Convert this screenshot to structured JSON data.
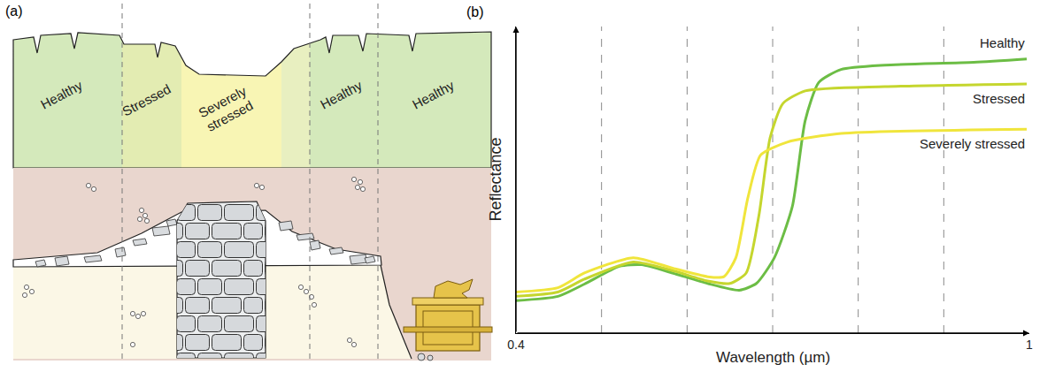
{
  "diagram": {
    "panel_label": "(a)",
    "zones": [
      "Healthy",
      "Stressed",
      "Severely stressed",
      "Healthy",
      "Healthy"
    ]
  },
  "chart_data": {
    "type": "line",
    "panel_label": "(b)",
    "x_label": "Wavelength (µm)",
    "y_label": "Reflectance",
    "xlim": [
      0.4,
      1
    ],
    "xticks": [
      0.4,
      {
        "value": 0.5,
        "label": null
      },
      {
        "value": 0.6,
        "label": null
      },
      {
        "value": 0.7,
        "label": null
      },
      {
        "value": 0.8,
        "label": null
      },
      {
        "value": 0.9,
        "label": null
      },
      1
    ],
    "ylim": [
      0,
      1
    ],
    "yticks": [],
    "grid": true,
    "tick_labels": "x",
    "series": [
      {
        "name": "Healthy",
        "color": "#6cbd45",
        "x": [
          0.4,
          0.449,
          0.48,
          0.521,
          0.547,
          0.583,
          0.624,
          0.661,
          0.681,
          0.702,
          0.723,
          0.738,
          0.754,
          0.78,
          0.831,
          0.935,
          0.997
        ],
        "values": [
          0.106,
          0.12,
          0.16,
          0.218,
          0.223,
          0.196,
          0.162,
          0.14,
          0.162,
          0.246,
          0.413,
          0.693,
          0.818,
          0.86,
          0.874,
          0.883,
          0.894
        ]
      },
      {
        "name": "Stressed",
        "color": "#c5d62e",
        "x": [
          0.4,
          0.449,
          0.48,
          0.537,
          0.583,
          0.624,
          0.65,
          0.669,
          0.684,
          0.697,
          0.712,
          0.738,
          0.831,
          0.997
        ],
        "values": [
          0.12,
          0.134,
          0.176,
          0.232,
          0.204,
          0.17,
          0.162,
          0.196,
          0.385,
          0.637,
          0.749,
          0.79,
          0.804,
          0.813
        ]
      },
      {
        "name": "Severely stressed",
        "color": "#f0e53c",
        "x": [
          0.4,
          0.449,
          0.48,
          0.537,
          0.583,
          0.624,
          0.643,
          0.657,
          0.671,
          0.686,
          0.717,
          0.78,
          0.997
        ],
        "values": [
          0.134,
          0.148,
          0.196,
          0.246,
          0.212,
          0.184,
          0.184,
          0.246,
          0.441,
          0.581,
          0.623,
          0.651,
          0.665
        ]
      }
    ]
  }
}
